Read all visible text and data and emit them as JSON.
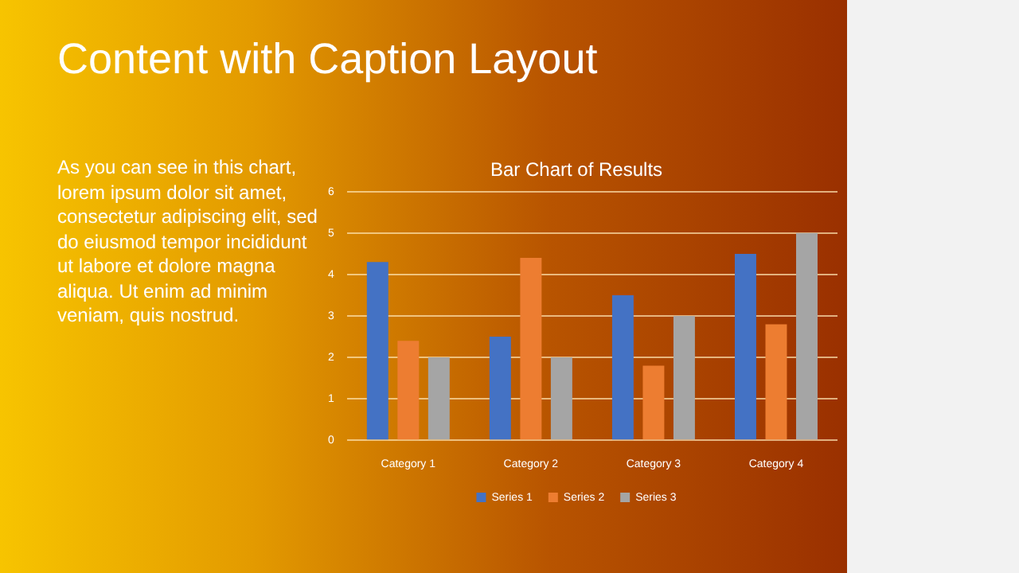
{
  "chart_data": {
    "type": "bar",
    "title": "Bar Chart of Results",
    "annotations": [
      "Content with Caption Layout",
      "As you can see in this chart, lorem ipsum dolor sit amet, consectetur adipiscing elit, sed do eiusmod tempor incididunt ut labore et dolore magna aliqua. Ut enim ad minim veniam, quis nostrud."
    ],
    "categories": [
      "Category 1",
      "Category 2",
      "Category 3",
      "Category 4"
    ],
    "series": [
      {
        "name": "Series 1",
        "color": "#4472c4",
        "values": [
          4.3,
          2.5,
          3.5,
          4.5
        ]
      },
      {
        "name": "Series 2",
        "color": "#ed7d31",
        "values": [
          2.4,
          4.4,
          1.8,
          2.8
        ]
      },
      {
        "name": "Series 3",
        "color": "#a5a5a5",
        "values": [
          2,
          2,
          3,
          5
        ]
      }
    ],
    "ylim": [
      0,
      6
    ],
    "yticks": [
      0,
      1,
      2,
      3,
      4,
      5,
      6
    ],
    "grid": "y",
    "legend": "bottom"
  }
}
